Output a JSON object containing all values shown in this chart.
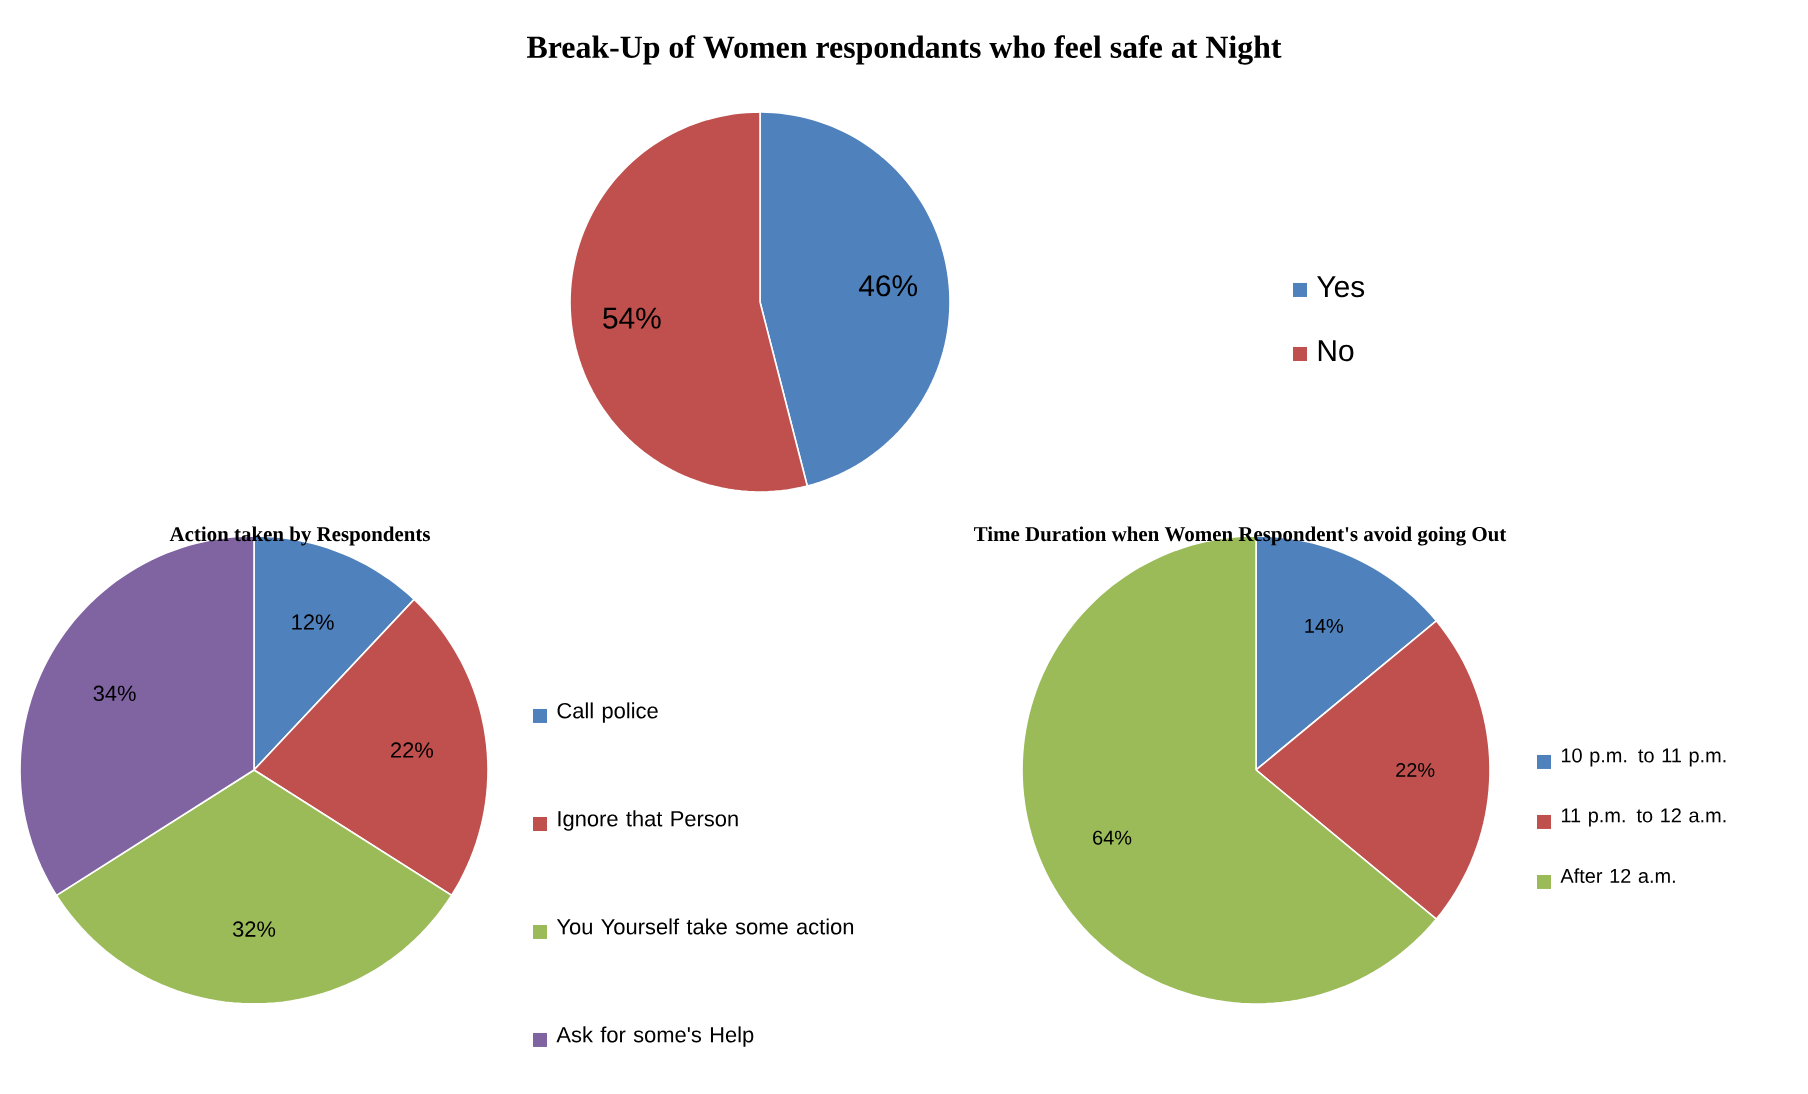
{
  "chart_data": [
    {
      "type": "pie",
      "title": "Break-Up of Women respondants who feel safe at Night",
      "categories": [
        "Yes",
        "No"
      ],
      "values": [
        46,
        54
      ],
      "colors": [
        "#4f81bd",
        "#c0504d"
      ],
      "value_labels": [
        "46%",
        "54%"
      ],
      "legend": "right"
    },
    {
      "type": "pie",
      "title": "Action taken by Respondents",
      "categories": [
        "Call police",
        "Ignore that Person",
        "You Yourself take some action",
        "Ask for some's Help"
      ],
      "values": [
        12,
        22,
        32,
        34
      ],
      "colors": [
        "#4f81bd",
        "#c0504d",
        "#9bbb59",
        "#8064a2"
      ],
      "value_labels": [
        "12%",
        "22%",
        "32%",
        "34%"
      ],
      "legend": "right"
    },
    {
      "type": "pie",
      "title": "Time Duration when Women Respondent's avoid going Out",
      "categories": [
        "10 p.m. to 11 p.m.",
        "11 p.m. to 12 a.m.",
        "After 12 a.m."
      ],
      "values": [
        14,
        22,
        64
      ],
      "colors": [
        "#4f81bd",
        "#c0504d",
        "#9bbb59"
      ],
      "value_labels": [
        "14%",
        "22%",
        "64%"
      ],
      "legend": "right"
    }
  ]
}
